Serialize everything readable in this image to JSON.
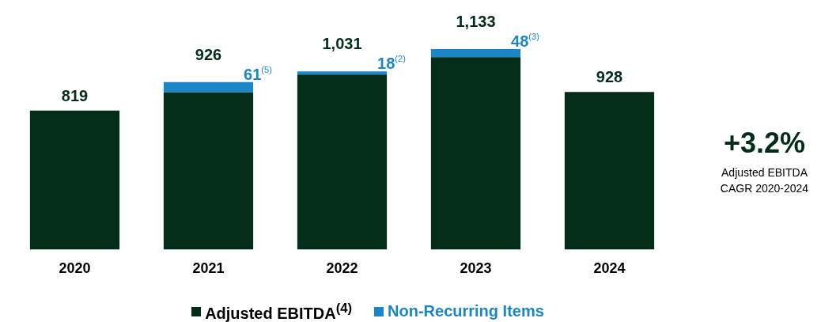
{
  "chart_data": {
    "type": "bar",
    "stacked": true,
    "categories": [
      "2020",
      "2021",
      "2022",
      "2023",
      "2024"
    ],
    "series": [
      {
        "name": "Adjusted EBITDA$^{(4)}$",
        "color": "#032d19",
        "values": [
          819,
          926,
          1031,
          1133,
          928
        ],
        "value_labels": [
          "819",
          "926",
          "1,031",
          "1,133",
          "928"
        ]
      },
      {
        "name": "Non-Recurring Items",
        "color": "#1a86c7",
        "values": [
          null,
          61,
          18,
          48,
          null
        ],
        "value_labels": [
          null,
          "61$^{(5)}$",
          "18$^{(2)}$",
          "48$^{(3)}$",
          null
        ]
      }
    ],
    "annotations": [
      "+3.2%",
      "Adjusted EBITDA CAGR 2020-2024"
    ],
    "grid": false,
    "legend": "bottom",
    "tick_labels": "x"
  }
}
